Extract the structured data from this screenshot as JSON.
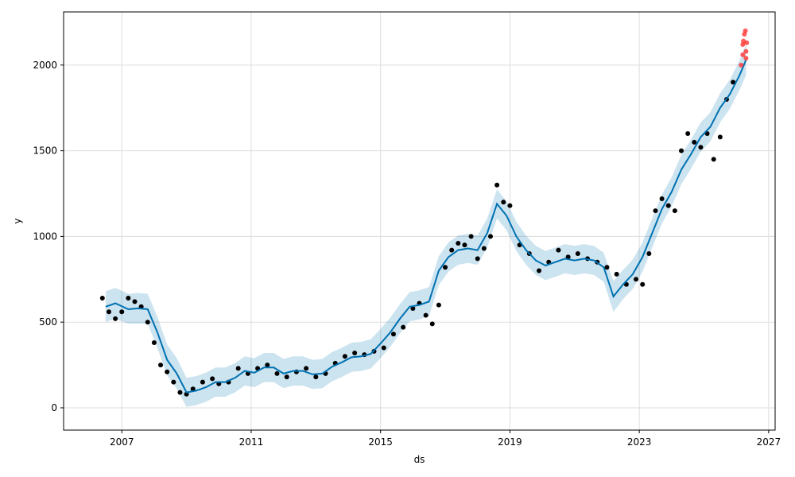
{
  "chart_data": {
    "type": "line",
    "title": "",
    "xlabel": "ds",
    "ylabel": "y",
    "xlim": [
      2005.2,
      2027.2
    ],
    "ylim": [
      -130,
      2310
    ],
    "x_ticks": [
      2007,
      2011,
      2015,
      2019,
      2023,
      2027
    ],
    "x_tick_labels": [
      "2007",
      "2011",
      "2015",
      "2019",
      "2023",
      "2027"
    ],
    "y_ticks": [
      0,
      500,
      1000,
      1500,
      2000
    ],
    "y_tick_labels": [
      "0",
      "500",
      "1000",
      "1500",
      "2000"
    ],
    "grid": true,
    "legend": "none",
    "colors": {
      "forecast_line": "#0072B2",
      "uncertainty_band": "#0072B2",
      "observations": "#000000",
      "highlighted_points": "#ff3333",
      "grid": "#dddddd"
    },
    "series": [
      {
        "role": "forecast",
        "x": [
          2006.5,
          2006.8,
          2007.2,
          2007.5,
          2007.8,
          2008.1,
          2008.4,
          2008.7,
          2009.0,
          2009.3,
          2009.6,
          2009.9,
          2010.2,
          2010.5,
          2010.8,
          2011.1,
          2011.4,
          2011.7,
          2012.0,
          2012.3,
          2012.6,
          2012.9,
          2013.2,
          2013.5,
          2013.8,
          2014.1,
          2014.4,
          2014.7,
          2015.0,
          2015.3,
          2015.6,
          2015.9,
          2016.2,
          2016.5,
          2016.8,
          2017.1,
          2017.4,
          2017.7,
          2018.0,
          2018.3,
          2018.6,
          2018.9,
          2019.2,
          2019.5,
          2019.8,
          2020.1,
          2020.4,
          2020.7,
          2021.0,
          2021.3,
          2021.6,
          2021.9,
          2022.2,
          2022.5,
          2022.8,
          2023.1,
          2023.4,
          2023.7,
          2024.0,
          2024.3,
          2024.6,
          2024.9,
          2025.2,
          2025.5,
          2025.8,
          2026.1,
          2026.3
        ],
        "y": [
          590,
          610,
          575,
          580,
          575,
          440,
          280,
          200,
          90,
          100,
          120,
          150,
          150,
          175,
          215,
          205,
          235,
          235,
          200,
          215,
          215,
          195,
          200,
          240,
          265,
          295,
          300,
          315,
          375,
          440,
          520,
          590,
          600,
          620,
          800,
          880,
          920,
          930,
          920,
          1020,
          1190,
          1120,
          1000,
          920,
          860,
          830,
          850,
          870,
          860,
          870,
          860,
          820,
          650,
          720,
          780,
          880,
          1020,
          1160,
          1260,
          1390,
          1480,
          1580,
          1640,
          1750,
          1830,
          1940,
          2030
        ],
        "y_lower": [
          500,
          520,
          490,
          490,
          490,
          350,
          190,
          110,
          5,
          15,
          35,
          65,
          65,
          90,
          130,
          120,
          150,
          150,
          115,
          130,
          130,
          110,
          115,
          155,
          180,
          210,
          215,
          230,
          290,
          355,
          435,
          505,
          515,
          535,
          715,
          795,
          835,
          845,
          835,
          935,
          1105,
          1035,
          915,
          835,
          775,
          745,
          765,
          785,
          775,
          785,
          775,
          735,
          560,
          635,
          695,
          795,
          935,
          1075,
          1175,
          1305,
          1395,
          1495,
          1555,
          1665,
          1745,
          1855,
          1940
        ],
        "y_upper": [
          680,
          700,
          665,
          670,
          665,
          530,
          370,
          290,
          175,
          185,
          205,
          235,
          235,
          260,
          300,
          290,
          320,
          320,
          285,
          300,
          300,
          280,
          285,
          325,
          350,
          380,
          385,
          400,
          460,
          525,
          605,
          675,
          685,
          705,
          885,
          965,
          1005,
          1015,
          1005,
          1105,
          1275,
          1205,
          1085,
          1005,
          945,
          915,
          935,
          955,
          945,
          955,
          945,
          905,
          740,
          805,
          865,
          965,
          1105,
          1245,
          1345,
          1475,
          1565,
          1665,
          1725,
          1835,
          1915,
          2025,
          2120
        ]
      },
      {
        "role": "observed",
        "x": [
          2006.4,
          2006.6,
          2006.8,
          2007.0,
          2007.2,
          2007.4,
          2007.6,
          2007.8,
          2008.0,
          2008.2,
          2008.4,
          2008.6,
          2008.8,
          2009.0,
          2009.2,
          2009.5,
          2009.8,
          2010.0,
          2010.3,
          2010.6,
          2010.9,
          2011.2,
          2011.5,
          2011.8,
          2012.1,
          2012.4,
          2012.7,
          2013.0,
          2013.3,
          2013.6,
          2013.9,
          2014.2,
          2014.5,
          2014.8,
          2015.1,
          2015.4,
          2015.7,
          2016.0,
          2016.2,
          2016.4,
          2016.6,
          2016.8,
          2017.0,
          2017.2,
          2017.4,
          2017.6,
          2017.8,
          2018.0,
          2018.2,
          2018.4,
          2018.6,
          2018.8,
          2019.0,
          2019.3,
          2019.6,
          2019.9,
          2020.2,
          2020.5,
          2020.8,
          2021.1,
          2021.4,
          2021.7,
          2022.0,
          2022.3,
          2022.6,
          2022.9,
          2023.1,
          2023.3,
          2023.5,
          2023.7,
          2023.9,
          2024.1,
          2024.3,
          2024.5,
          2024.7,
          2024.9,
          2025.1,
          2025.3,
          2025.5,
          2025.7,
          2025.9
        ],
        "y": [
          640,
          560,
          520,
          560,
          640,
          620,
          590,
          500,
          380,
          250,
          210,
          150,
          90,
          80,
          110,
          150,
          170,
          140,
          150,
          230,
          200,
          230,
          250,
          200,
          180,
          210,
          230,
          180,
          200,
          260,
          300,
          320,
          310,
          330,
          350,
          430,
          470,
          580,
          610,
          540,
          490,
          600,
          820,
          920,
          960,
          950,
          1000,
          870,
          930,
          1000,
          1300,
          1200,
          1180,
          950,
          900,
          800,
          850,
          920,
          880,
          900,
          870,
          850,
          820,
          780,
          720,
          750,
          720,
          900,
          1150,
          1220,
          1180,
          1150,
          1500,
          1600,
          1550,
          1520,
          1600,
          1450,
          1580,
          1800,
          1900
        ]
      },
      {
        "role": "highlighted",
        "x": [
          2026.15,
          2026.2,
          2026.2,
          2026.22,
          2026.25,
          2026.28,
          2026.3,
          2026.3,
          2026.32
        ],
        "y": [
          2000,
          2060,
          2120,
          2140,
          2180,
          2200,
          2080,
          2040,
          2130
        ]
      }
    ]
  }
}
